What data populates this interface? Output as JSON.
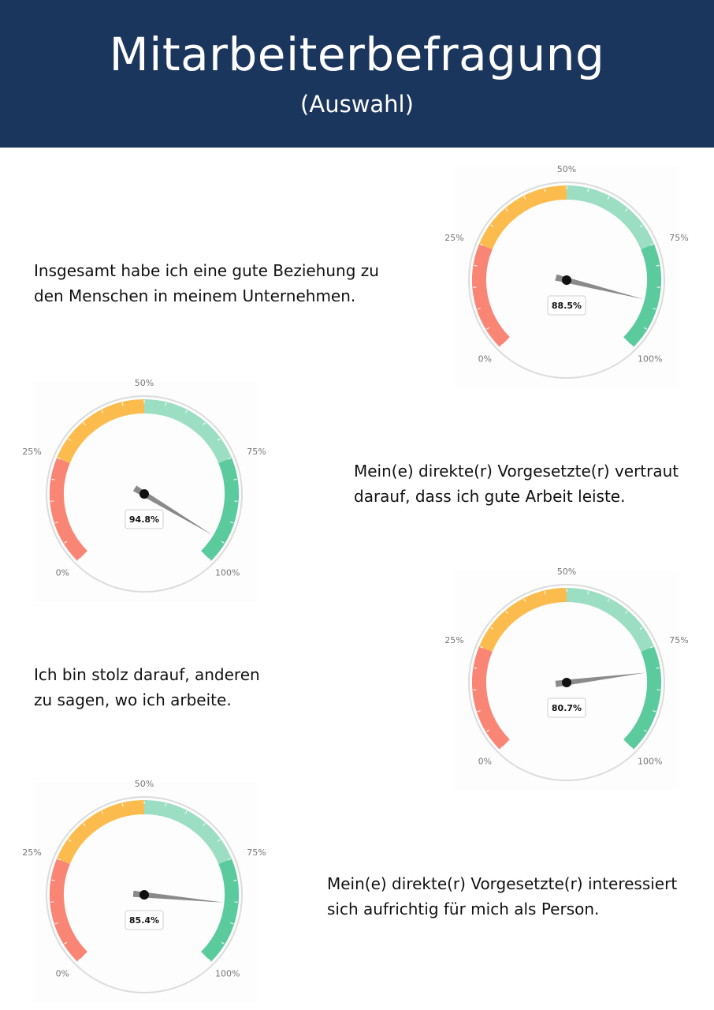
{
  "header": {
    "title": "Mitarbeiterbefragung",
    "subtitle": "(Auswahl)"
  },
  "chart_data": [
    {
      "type": "gauge",
      "statement": "Insgesamt habe ich eine gute Beziehung zu den Menschen in meinem Unternehmen.",
      "value": 88.5,
      "value_label": "88.5%",
      "range": [
        0,
        100
      ],
      "tick_labels": [
        "0%",
        "25%",
        "50%",
        "75%",
        "100%"
      ],
      "bands": [
        {
          "from": 0,
          "to": 25,
          "color": "#f98575"
        },
        {
          "from": 25,
          "to": 50,
          "color": "#fbbc4d"
        },
        {
          "from": 50,
          "to": 75,
          "color": "#9bdec4"
        },
        {
          "from": 75,
          "to": 100,
          "color": "#5bcb9d"
        }
      ]
    },
    {
      "type": "gauge",
      "statement": "Mein(e) direkte(r) Vorgesetzte(r) vertraut darauf, dass ich gute Arbeit leiste.",
      "value": 94.8,
      "value_label": "94.8%",
      "range": [
        0,
        100
      ],
      "tick_labels": [
        "0%",
        "25%",
        "50%",
        "75%",
        "100%"
      ],
      "bands": [
        {
          "from": 0,
          "to": 25,
          "color": "#f98575"
        },
        {
          "from": 25,
          "to": 50,
          "color": "#fbbc4d"
        },
        {
          "from": 50,
          "to": 75,
          "color": "#9bdec4"
        },
        {
          "from": 75,
          "to": 100,
          "color": "#5bcb9d"
        }
      ]
    },
    {
      "type": "gauge",
      "statement": "Ich bin stolz darauf, anderen zu sagen, wo ich arbeite.",
      "value": 80.7,
      "value_label": "80.7%",
      "range": [
        0,
        100
      ],
      "tick_labels": [
        "0%",
        "25%",
        "50%",
        "75%",
        "100%"
      ],
      "bands": [
        {
          "from": 0,
          "to": 25,
          "color": "#f98575"
        },
        {
          "from": 25,
          "to": 50,
          "color": "#fbbc4d"
        },
        {
          "from": 50,
          "to": 75,
          "color": "#9bdec4"
        },
        {
          "from": 75,
          "to": 100,
          "color": "#5bcb9d"
        }
      ]
    },
    {
      "type": "gauge",
      "statement": "Mein(e) direkte(r) Vorgesetzte(r) interessiert sich aufrichtig für mich als Person.",
      "value": 85.4,
      "value_label": "85.4%",
      "range": [
        0,
        100
      ],
      "tick_labels": [
        "0%",
        "25%",
        "50%",
        "75%",
        "100%"
      ],
      "bands": [
        {
          "from": 0,
          "to": 25,
          "color": "#f98575"
        },
        {
          "from": 25,
          "to": 50,
          "color": "#fbbc4d"
        },
        {
          "from": 50,
          "to": 75,
          "color": "#9bdec4"
        },
        {
          "from": 75,
          "to": 100,
          "color": "#5bcb9d"
        }
      ]
    }
  ]
}
